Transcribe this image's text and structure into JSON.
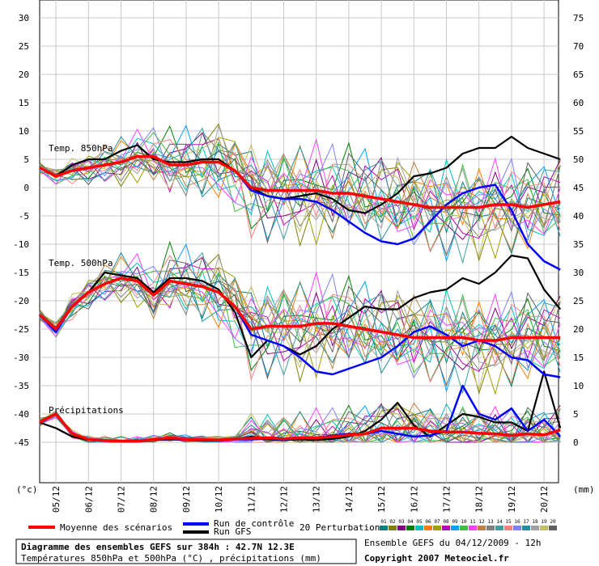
{
  "chart_data": {
    "type": "line",
    "title": "Diagramme des ensembles GEFS sur 384h : 42.7N 12.3E",
    "subtitle": "Températures 850hPa et 500hPa (°C) , précipitations (mm)",
    "run_info": "Ensemble GEFS du 04/12/2009 - 12h",
    "copyright": "Copyright 2007 Meteociel.fr",
    "ylabel_left": "(°c)",
    "ylabel_right": "(mm)",
    "y_left_ticks": [
      30,
      25,
      20,
      15,
      10,
      5,
      0,
      -5,
      -10,
      -15,
      -20,
      -25,
      -30,
      -35,
      -40,
      -45
    ],
    "y_right_ticks": [
      75,
      70,
      65,
      60,
      55,
      50,
      45,
      40,
      35,
      30,
      25,
      20,
      15,
      10,
      5,
      0
    ],
    "ylim_left": [
      -45,
      30
    ],
    "ylim_right": [
      0,
      75
    ],
    "x_dates": [
      "05/12",
      "06/12",
      "07/12",
      "08/12",
      "09/12",
      "10/12",
      "11/12",
      "12/12",
      "13/12",
      "14/12",
      "15/12",
      "16/12",
      "17/12",
      "18/12",
      "19/12",
      "20/12"
    ],
    "section_labels": {
      "t850": "Temp. 850hPa",
      "t500": "Temp. 500hPa",
      "precip": "Précipitations"
    },
    "legend": {
      "mean": "Moyenne des scénarios",
      "control": "Run de contrôle",
      "gfs": "Run GFS",
      "perturbations": "20 Perturbations",
      "perturbation_ids": [
        "01",
        "02",
        "03",
        "04",
        "05",
        "06",
        "07",
        "08",
        "09",
        "10",
        "11",
        "12",
        "13",
        "14",
        "15",
        "16",
        "17",
        "18",
        "19",
        "20"
      ]
    },
    "colors": {
      "mean": "#ff0000",
      "control": "#0000ff",
      "gfs": "#000000",
      "perturbations": [
        "#008080",
        "#808000",
        "#800080",
        "#008000",
        "#00c0c0",
        "#ff8000",
        "#a0a000",
        "#c000c0",
        "#00a0ff",
        "#40c040",
        "#ff40ff",
        "#c08040",
        "#808080",
        "#40a0a0",
        "#ff8080",
        "#8080ff",
        "#2090a0",
        "#a0a0a0",
        "#c0c060",
        "#606060"
      ]
    },
    "x": [
      0,
      0.5,
      1,
      1.5,
      2,
      2.5,
      3,
      3.5,
      4,
      4.5,
      5,
      5.5,
      6,
      6.5,
      7,
      7.5,
      8,
      8.5,
      9,
      9.5,
      10,
      10.5,
      11,
      11.5,
      12,
      12.5,
      13,
      13.5,
      14,
      14.5,
      15,
      15.5,
      16
    ],
    "series": [
      {
        "name": "Moyenne des scénarios",
        "group": "t850",
        "values": [
          3.5,
          2,
          3,
          3.5,
          4,
          4.5,
          5.5,
          5.5,
          4,
          4,
          4.5,
          4.5,
          3,
          0,
          -0.5,
          -0.5,
          -0.5,
          -0.5,
          -1,
          -1,
          -1.5,
          -2,
          -2.5,
          -3,
          -3.5,
          -3.5,
          -3.5,
          -3.5,
          -3,
          -3,
          -3.5,
          -3,
          -2.5
        ]
      },
      {
        "name": "Run de contrôle",
        "group": "t850",
        "values": [
          3.5,
          2,
          3,
          3.5,
          4,
          4.5,
          5.5,
          5.5,
          4,
          4,
          4.5,
          4.5,
          3,
          -0.5,
          -1.5,
          -2,
          -2,
          -2.5,
          -4,
          -6,
          -8,
          -9.5,
          -10,
          -9,
          -6,
          -3,
          -1,
          0,
          0.5,
          -4,
          -10,
          -13,
          -14.5
        ]
      },
      {
        "name": "Run GFS",
        "group": "t850",
        "values": [
          3.5,
          2,
          4,
          5,
          5,
          6.5,
          7.5,
          5,
          4.5,
          4.5,
          5,
          5,
          3,
          0,
          -1.5,
          -2,
          -1.5,
          -1,
          -2,
          -4,
          -4.5,
          -3,
          -1,
          2,
          2.5,
          3.5,
          6,
          7,
          7,
          9,
          7,
          6,
          5
        ]
      },
      {
        "name": "Moyenne des scénarios",
        "group": "t500",
        "values": [
          -22.5,
          -25,
          -21,
          -18.5,
          -17,
          -16,
          -16.5,
          -19,
          -16.5,
          -17,
          -17.5,
          -18.5,
          -21,
          -25,
          -24.5,
          -24.5,
          -24.5,
          -24,
          -24,
          -24.5,
          -25,
          -25.5,
          -26,
          -26.5,
          -26.5,
          -26.5,
          -26.5,
          -27,
          -27,
          -26.5,
          -26.5,
          -26.5,
          -26.5
        ]
      },
      {
        "name": "Run de contrôle",
        "group": "t500",
        "values": [
          -22.5,
          -25.5,
          -21,
          -18.5,
          -17,
          -16,
          -16.5,
          -19,
          -16.5,
          -17,
          -17.5,
          -18.5,
          -21,
          -26,
          -27,
          -28,
          -30,
          -32.5,
          -33,
          -32,
          -31,
          -30,
          -28,
          -25.5,
          -24.5,
          -26,
          -28,
          -27,
          -28,
          -30,
          -30.5,
          -33,
          -33.5
        ]
      },
      {
        "name": "Run GFS",
        "group": "t500",
        "values": [
          -22.5,
          -25,
          -21,
          -18.5,
          -15,
          -15.5,
          -16,
          -18.5,
          -16,
          -16,
          -16.5,
          -18,
          -22,
          -30,
          -27,
          -28,
          -29.5,
          -28,
          -25,
          -23,
          -21,
          -21.5,
          -21.5,
          -19.5,
          -18.5,
          -18,
          -16,
          -17,
          -15,
          -12,
          -12.5,
          -18,
          -21.5
        ]
      },
      {
        "name": "Moyenne des scénarios",
        "group": "precip",
        "values": [
          3.5,
          5,
          1.5,
          0.5,
          0.3,
          0.2,
          0.2,
          0.5,
          0.8,
          0.5,
          0.5,
          0.4,
          0.6,
          0.7,
          0.8,
          0.6,
          0.8,
          0.8,
          1,
          1.3,
          1.5,
          2.5,
          2.5,
          2.5,
          2,
          1.8,
          1.8,
          1.6,
          1.5,
          1.2,
          1.5,
          1.3,
          2.2
        ]
      },
      {
        "name": "Run de contrôle",
        "group": "precip",
        "values": [
          3.5,
          5,
          1.5,
          0.5,
          0.3,
          0.2,
          0.2,
          0.5,
          0.6,
          0.4,
          0.3,
          0.3,
          0.5,
          0.5,
          0.6,
          0.5,
          0.7,
          0.8,
          1.2,
          1.5,
          1.5,
          2,
          1.5,
          1,
          1.2,
          2,
          10,
          5,
          4,
          6,
          2,
          4,
          1
        ]
      },
      {
        "name": "Run GFS",
        "group": "precip",
        "values": [
          3.5,
          2.5,
          1,
          0.4,
          0.3,
          0.2,
          0.2,
          0.4,
          0.5,
          0.4,
          0.4,
          0.4,
          0.5,
          1,
          0.5,
          0.4,
          0.5,
          0.4,
          0.6,
          1,
          2,
          4,
          7,
          3,
          1,
          3,
          5,
          4.5,
          3.5,
          3.5,
          2,
          12.5,
          2.5
        ]
      }
    ]
  }
}
